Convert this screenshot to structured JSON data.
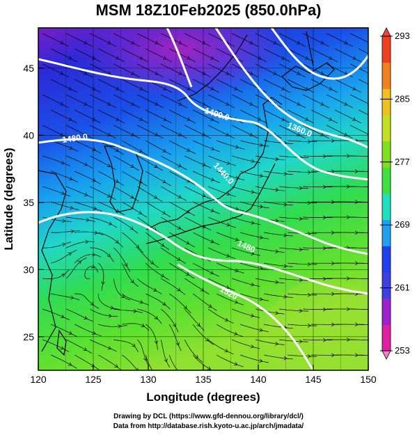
{
  "title": "MSM 18Z10Feb2025 (850.0hPa)",
  "map": {
    "x_axis": {
      "label": "Longitude (degrees)",
      "range": [
        120,
        150
      ],
      "ticks": [
        "120",
        "125",
        "130",
        "135",
        "140",
        "145",
        "150"
      ]
    },
    "y_axis": {
      "label": "Latitude  (degrees)",
      "range": [
        22.5,
        48
      ],
      "ticks": [
        "25",
        "30",
        "35",
        "40",
        "45"
      ]
    },
    "contour_labels": [
      "1400.0",
      "1360.0",
      "1480.0",
      "1440.0",
      "1480",
      "1520"
    ],
    "colorbar": {
      "ticks": [
        "293",
        "285",
        "277",
        "269",
        "261",
        "253"
      ],
      "range": [
        253,
        293
      ],
      "colors": [
        "#e020a0",
        "#a020d0",
        "#4040e0",
        "#2040f0",
        "#20a0f0",
        "#20e0c0",
        "#40e040",
        "#80e020",
        "#c0e020",
        "#f0c020",
        "#f08020",
        "#f04020"
      ]
    }
  },
  "credits": {
    "line1": "Drawing by DCL (https://www.gfd-dennou.org/library/dcl/)",
    "line2": "Data from http://database.rish.kyoto-u.ac.jp/arch/jmadata/"
  }
}
